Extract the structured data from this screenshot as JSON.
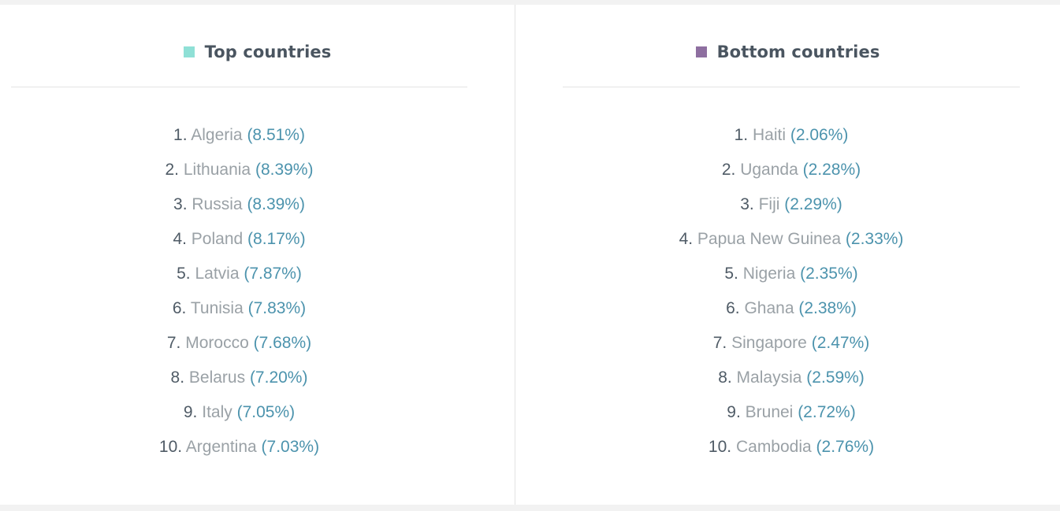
{
  "top": {
    "title": "Top countries",
    "swatch_color": "#8fe0d6",
    "items": [
      {
        "rank": "1.",
        "country": "Algeria",
        "pct": "(8.51%)"
      },
      {
        "rank": "2.",
        "country": "Lithuania",
        "pct": "(8.39%)"
      },
      {
        "rank": "3.",
        "country": "Russia",
        "pct": "(8.39%)"
      },
      {
        "rank": "4.",
        "country": "Poland",
        "pct": "(8.17%)"
      },
      {
        "rank": "5.",
        "country": "Latvia",
        "pct": "(7.87%)"
      },
      {
        "rank": "6.",
        "country": "Tunisia",
        "pct": "(7.83%)"
      },
      {
        "rank": "7.",
        "country": "Morocco",
        "pct": "(7.68%)"
      },
      {
        "rank": "8.",
        "country": "Belarus",
        "pct": "(7.20%)"
      },
      {
        "rank": "9.",
        "country": "Italy",
        "pct": "(7.05%)"
      },
      {
        "rank": "10.",
        "country": "Argentina",
        "pct": "(7.03%)"
      }
    ]
  },
  "bottom": {
    "title": "Bottom countries",
    "swatch_color": "#8e6fa0",
    "items": [
      {
        "rank": "1.",
        "country": "Haiti",
        "pct": "(2.06%)"
      },
      {
        "rank": "2.",
        "country": "Uganda",
        "pct": "(2.28%)"
      },
      {
        "rank": "3.",
        "country": "Fiji",
        "pct": "(2.29%)"
      },
      {
        "rank": "4.",
        "country": "Papua New Guinea",
        "pct": "(2.33%)"
      },
      {
        "rank": "5.",
        "country": "Nigeria",
        "pct": "(2.35%)"
      },
      {
        "rank": "6.",
        "country": "Ghana",
        "pct": "(2.38%)"
      },
      {
        "rank": "7.",
        "country": "Singapore",
        "pct": "(2.47%)"
      },
      {
        "rank": "8.",
        "country": "Malaysia",
        "pct": "(2.59%)"
      },
      {
        "rank": "9.",
        "country": "Brunei",
        "pct": "(2.72%)"
      },
      {
        "rank": "10.",
        "country": "Cambodia",
        "pct": "(2.76%)"
      }
    ]
  }
}
